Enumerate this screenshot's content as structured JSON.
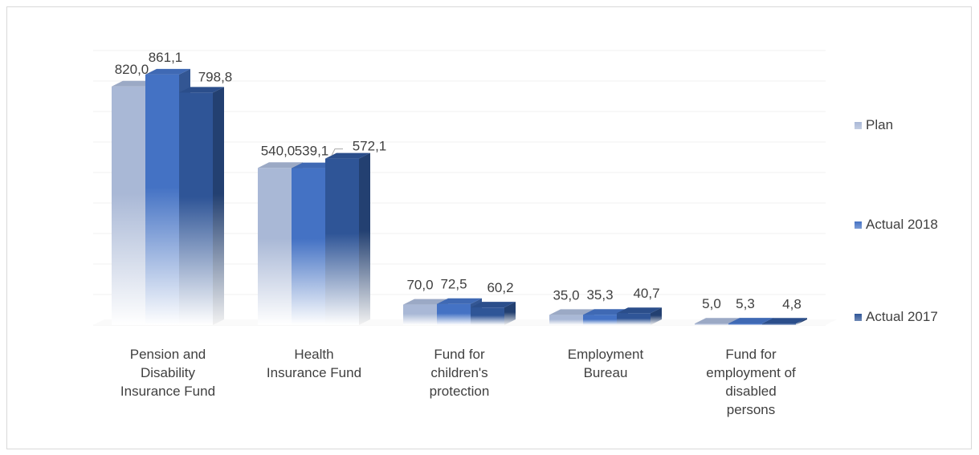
{
  "chart_data": {
    "type": "bar",
    "categories": [
      "Pension and\nDisability\nInsurance Fund",
      "Health\nInsurance Fund",
      "Fund for\nchildren's\nprotection",
      "Employment\nBureau",
      "Fund for\nemployment of\ndisabled\npersons"
    ],
    "series": [
      {
        "name": "Plan",
        "values": [
          820.0,
          540.0,
          70.0,
          35.0,
          5.0
        ],
        "labels": [
          "820,0",
          "540,0",
          "70,0",
          "35,0",
          "5,0"
        ],
        "color": "#a9b8d6"
      },
      {
        "name": "Actual 2018",
        "values": [
          861.1,
          539.1,
          72.5,
          35.3,
          5.3
        ],
        "labels": [
          "861,1",
          "539,1",
          "72,5",
          "35,3",
          "5,3"
        ],
        "color": "#4472c4"
      },
      {
        "name": "Actual 2017",
        "values": [
          798.8,
          572.1,
          60.2,
          40.7,
          4.8
        ],
        "labels": [
          "798,8",
          "572,1",
          "60,2",
          "40,7",
          "4,8"
        ],
        "color": "#2f5597"
      }
    ],
    "ylim": [
      0,
      900
    ],
    "grid": true,
    "legend_position": "right",
    "style": "3d-column"
  }
}
